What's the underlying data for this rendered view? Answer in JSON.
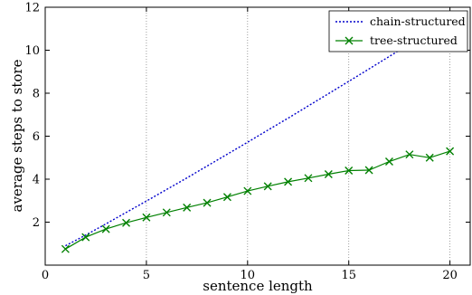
{
  "chart_data": {
    "type": "line",
    "xlabel": "sentence length",
    "ylabel": "average steps to store",
    "xlim": [
      0,
      21
    ],
    "ylim": [
      0,
      12
    ],
    "xticks": [
      0,
      5,
      10,
      15,
      20
    ],
    "yticks": [
      2,
      4,
      6,
      8,
      10,
      12
    ],
    "grid": "vertical dotted lines at x ticks",
    "legend_position": "top-right",
    "series": [
      {
        "name": "chain-structured",
        "style": "dotted",
        "color": "#0000cc",
        "x": [
          1,
          2,
          3,
          4,
          5,
          6,
          7,
          8,
          9,
          10,
          11,
          12,
          13,
          14,
          15,
          16,
          17,
          18,
          19,
          20
        ],
        "values": [
          0.9,
          1.4,
          1.92,
          2.45,
          2.98,
          3.52,
          4.06,
          4.61,
          5.16,
          5.72,
          6.28,
          6.84,
          7.41,
          7.98,
          8.55,
          9.13,
          9.71,
          10.29,
          10.87,
          11.46
        ]
      },
      {
        "name": "tree-structured",
        "style": "solid",
        "marker": "x",
        "color": "#008000",
        "x": [
          1,
          2,
          3,
          4,
          5,
          6,
          7,
          8,
          9,
          10,
          11,
          12,
          13,
          14,
          15,
          16,
          17,
          18,
          19,
          20
        ],
        "values": [
          0.75,
          1.3,
          1.68,
          1.97,
          2.22,
          2.45,
          2.68,
          2.9,
          3.17,
          3.45,
          3.67,
          3.88,
          4.05,
          4.23,
          4.4,
          4.42,
          4.82,
          5.15,
          5.0,
          5.3
        ]
      }
    ]
  }
}
